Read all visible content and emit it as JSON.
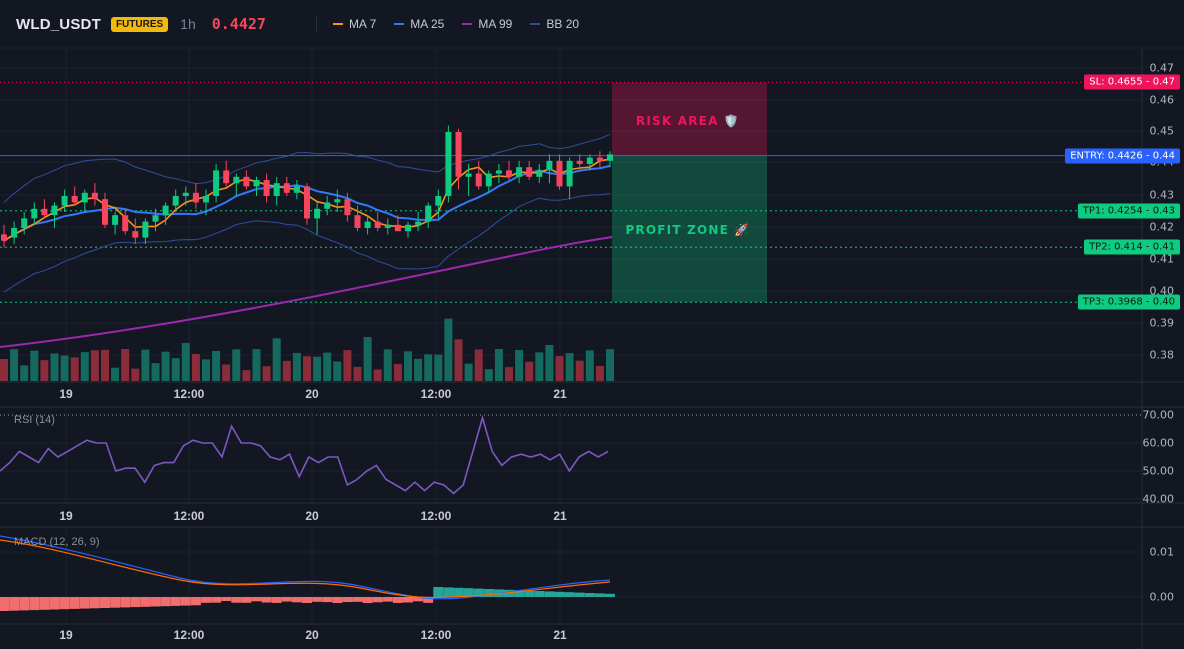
{
  "header": {
    "symbol": "WLD_USDT",
    "badge": "FUTURES",
    "timeframe": "1h",
    "last_price": "0.4427",
    "legend": [
      {
        "label": "MA 7",
        "color": "#f7931a"
      },
      {
        "label": "MA 25",
        "color": "#3179f5"
      },
      {
        "label": "MA 99",
        "color": "#9c27b0"
      },
      {
        "label": "BB 20",
        "color": "#2f4f9c"
      }
    ]
  },
  "colors": {
    "up": "#0ecb81",
    "down": "#f6465d",
    "vol_up": "#16695e",
    "vol_down": "#8b2c3a",
    "risk": "#f0145a",
    "profit": "#0ecb81",
    "entry": "#2962ff",
    "rsi": "#7e57c2",
    "macd": "#2962ff",
    "signal": "#ff6d00"
  },
  "time_axis": [
    "19",
    "12:00",
    "20",
    "12:00",
    "21"
  ],
  "main_axis": [
    "0.47",
    "0.46",
    "0.45",
    "0.44",
    "0.43",
    "0.42",
    "0.41",
    "0.40",
    "0.39",
    "0.38"
  ],
  "levels": {
    "sl": {
      "label": "SL: 0.4655 - 0.47",
      "value": 0.4655
    },
    "entry": {
      "label": "ENTRY: 0.4426 - 0.44",
      "value": 0.4426
    },
    "tp1": {
      "label": "TP1: 0.4254 - 0.43",
      "value": 0.4254
    },
    "tp2": {
      "label": "TP2: 0.414 - 0.41",
      "value": 0.414
    },
    "tp3": {
      "label": "TP3: 0.3968 - 0.40",
      "value": 0.3968
    }
  },
  "zones": {
    "risk_label": "RISK AREA 🛡️",
    "profit_label": "PROFIT ZONE 🚀"
  },
  "rsi": {
    "title": "RSI (14)",
    "axis": [
      "70.00",
      "60.00",
      "50.00",
      "40.00"
    ],
    "overbought": 70,
    "values": [
      50,
      53,
      57,
      55,
      53,
      58,
      55,
      57,
      59,
      61,
      60,
      60,
      50,
      51,
      51,
      46,
      52,
      53,
      53,
      59,
      61,
      60,
      60,
      55,
      66,
      60,
      60,
      59,
      55,
      54,
      56,
      48,
      55,
      53,
      55,
      55,
      45,
      47,
      50,
      52,
      47,
      45,
      43,
      46,
      43,
      46,
      45,
      42,
      45,
      57,
      69,
      57,
      52,
      55,
      56,
      55,
      56,
      54,
      56,
      50,
      55,
      57,
      55,
      57
    ]
  }
}
